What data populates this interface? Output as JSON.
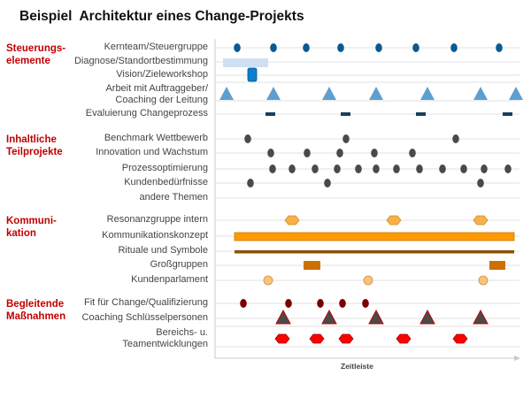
{
  "title": "Beispiel  Architektur eines Change-Projekts",
  "axis_label": "Zeitleiste",
  "sections": [
    {
      "title": "Steuerungs-\nelemente",
      "rows": [
        "Kernteam/Steuergruppe",
        "Diagnose/Standortbestimmung",
        "Vision/Zieleworkshop",
        "Arbeit mit Auftraggeber/\nCoaching der Leitung",
        "Evaluierung Changeprozess"
      ]
    },
    {
      "title": "Inhaltliche\nTeilprojekte",
      "rows": [
        "Benchmark Wettbewerb",
        "Innovation und Wachstum",
        "Prozessoptimierung",
        "Kundenbedürfnisse",
        "andere Themen"
      ]
    },
    {
      "title": "Kommuni-\nkation",
      "rows": [
        "Resonanzgruppe intern",
        "Kommunikationskonzept",
        "Rituale und Symbole",
        "Großgruppen",
        "Kundenparlament"
      ]
    },
    {
      "title": "Begleitende\nMaßnahmen",
      "rows": [
        "Fit für Change/Qualifizierung",
        "Coaching Schlüsselpersonen",
        "Bereichs- u.\nTeamentwicklungen"
      ]
    }
  ],
  "colors": {
    "section_title": "#c00000",
    "kernteam": "#0a5a91",
    "diagnose": "#cfe0f3",
    "vision": "#0a7fd0",
    "auftraggeber": "#5f9fd0",
    "evaluierung": "#17405f",
    "inhalt": "#4a4a4a",
    "resonanz": "#f8b04a",
    "konzept": "#ff9900",
    "rituale": "#8a5200",
    "grossgruppen": "#cc7000",
    "parlament": "#f8c27a",
    "fit": "#7a0000",
    "coaching": "#4a4a4a",
    "teams": "#ff0000"
  }
}
